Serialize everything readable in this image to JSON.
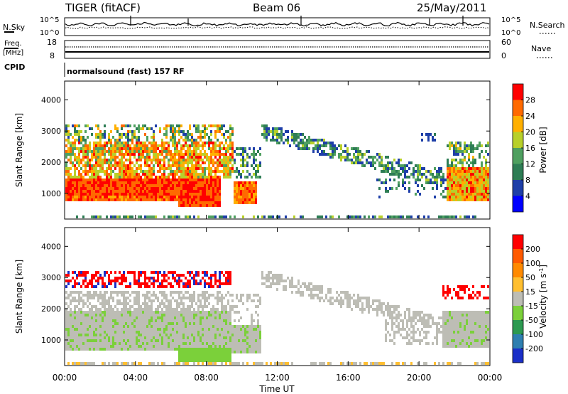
{
  "header": {
    "station": "TIGER (fitACF)",
    "beam": "Beam 06",
    "date": "25/May/2011"
  },
  "top_panels": {
    "nsky_label": "N.Sky",
    "nsky_ticks": [
      "10^5",
      "10^0"
    ],
    "nsky_right_ticks": [
      "10^5",
      "10^0"
    ],
    "nsearch_label": "N.Search",
    "freq_label_1": "Freq.",
    "freq_label_2": "[MHz]",
    "freq_ticks": [
      "18",
      "8"
    ],
    "nave_ticks": [
      "60",
      "0"
    ],
    "nave_label": "Nave",
    "cpid_label": "CPID",
    "cpid_value": "normalsound (fast) 157 RF"
  },
  "chart_data": [
    {
      "type": "heatmap",
      "name": "power",
      "ylabel": "Slant Range [km]",
      "y_ticks": [
        "1000",
        "2000",
        "3000",
        "4000"
      ],
      "ylim": [
        180,
        4600
      ],
      "xlim_hours": [
        0,
        24
      ],
      "colorbar_label": "Power [dB]",
      "colorbar_ticks": [
        "4",
        "8",
        "12",
        "16",
        "20",
        "24",
        "28"
      ],
      "colorbar_colors": [
        "#0000ff",
        "#1e3fa8",
        "#2e7d55",
        "#4fa060",
        "#b8d02a",
        "#ffb000",
        "#ff6a00",
        "#ff0000"
      ],
      "colorbar_range": [
        0,
        32
      ]
    },
    {
      "type": "heatmap",
      "name": "velocity",
      "ylabel": "Slant Range [km]",
      "y_ticks": [
        "1000",
        "2000",
        "3000",
        "4000"
      ],
      "ylim": [
        180,
        4600
      ],
      "xlim_hours": [
        0,
        24
      ],
      "colorbar_label": "Velocity [m s^-1]",
      "colorbar_ticks": [
        "200",
        "100",
        "50",
        "15",
        "-15",
        "-50",
        "-100",
        "-200"
      ],
      "colorbar_colors": [
        "#1a2fc8",
        "#2e7fb0",
        "#2c9a50",
        "#7bd03a",
        "#bdbdb5",
        "#ffbf30",
        "#ff8a00",
        "#ff5a00",
        "#ff0000"
      ]
    }
  ],
  "x_axis": {
    "ticks": [
      "00:00",
      "04:00",
      "08:00",
      "12:00",
      "16:00",
      "20:00",
      "00:00"
    ],
    "label": "Time UT"
  }
}
